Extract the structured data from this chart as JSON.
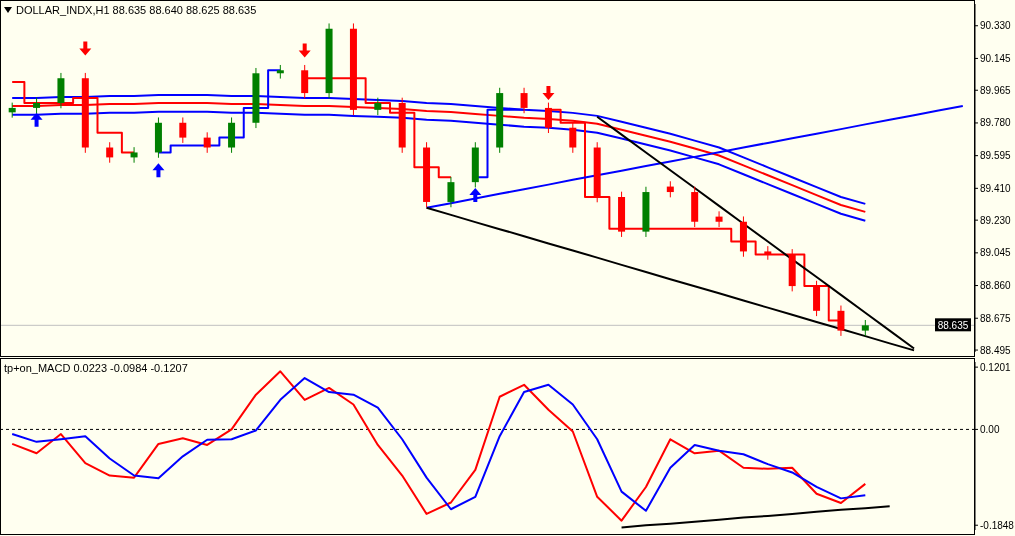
{
  "chart_data": [
    {
      "type": "candlestick",
      "title": "DOLLAR_INDX,H1 88.635 88.640 88.625 88.635",
      "categories": [
        null,
        null,
        null,
        null,
        null,
        null,
        null,
        null,
        null,
        null,
        null,
        null,
        null,
        null,
        null,
        null,
        null,
        null,
        null,
        null,
        null,
        null,
        null,
        null,
        null,
        null,
        null,
        null,
        null,
        null,
        null,
        null,
        null,
        null,
        null,
        null,
        null,
        null,
        null,
        null
      ],
      "ohlc": [
        [
          89.84,
          89.895,
          89.81,
          89.865
        ],
        [
          89.865,
          89.923,
          89.835,
          89.893
        ],
        [
          89.893,
          90.063,
          89.863,
          90.033
        ],
        [
          90.033,
          90.063,
          89.611,
          89.641
        ],
        [
          89.641,
          89.671,
          89.555,
          89.585
        ],
        [
          89.585,
          89.643,
          89.555,
          89.613
        ],
        [
          89.613,
          89.811,
          89.583,
          89.781
        ],
        [
          89.781,
          89.811,
          89.667,
          89.697
        ],
        [
          89.697,
          89.727,
          89.611,
          89.641
        ],
        [
          89.641,
          89.811,
          89.611,
          89.781
        ],
        [
          89.781,
          90.091,
          89.751,
          90.061
        ],
        [
          90.061,
          90.108,
          90.031,
          90.078
        ],
        [
          90.078,
          90.108,
          89.919,
          89.949
        ],
        [
          89.949,
          90.343,
          89.919,
          90.313
        ],
        [
          90.313,
          90.343,
          89.824,
          89.854
        ],
        [
          89.854,
          89.923,
          89.824,
          89.893
        ],
        [
          89.893,
          89.923,
          89.611,
          89.641
        ],
        [
          89.641,
          89.671,
          89.303,
          89.333
        ],
        [
          89.333,
          89.475,
          89.303,
          89.445
        ],
        [
          89.445,
          89.671,
          89.415,
          89.641
        ],
        [
          89.641,
          89.979,
          89.611,
          89.949
        ],
        [
          89.949,
          89.979,
          89.835,
          89.865
        ],
        [
          89.865,
          89.895,
          89.723,
          89.753
        ],
        [
          89.753,
          89.783,
          89.611,
          89.641
        ],
        [
          89.641,
          89.671,
          89.331,
          89.361
        ],
        [
          89.361,
          89.391,
          89.135,
          89.165
        ],
        [
          89.165,
          89.419,
          89.135,
          89.389
        ],
        [
          89.42,
          89.45,
          89.359,
          89.389
        ],
        [
          89.389,
          89.419,
          89.191,
          89.221
        ],
        [
          89.25,
          89.28,
          89.191,
          89.221
        ],
        [
          89.221,
          89.251,
          89.023,
          89.053
        ],
        [
          89.053,
          89.083,
          89.006,
          89.036
        ],
        [
          89.036,
          89.066,
          88.827,
          88.857
        ],
        [
          88.857,
          88.887,
          88.687,
          88.717
        ],
        [
          88.717,
          88.747,
          88.575,
          88.605
        ],
        [
          88.605,
          88.665,
          88.575,
          88.635
        ],
        null,
        null,
        null,
        null
      ],
      "colors": [
        "#008000",
        "#008000",
        "#008000",
        "#ff0000",
        "#ff0000",
        "#008000",
        "#008000",
        "#ff0000",
        "#ff0000",
        "#008000",
        "#008000",
        "#008000",
        "#ff0000",
        "#008000",
        "#ff0000",
        "#008000",
        "#ff0000",
        "#ff0000",
        "#008000",
        "#008000",
        "#008000",
        "#ff0000",
        "#ff0000",
        "#ff0000",
        "#ff0000",
        "#ff0000",
        "#008000",
        "#ff0000",
        "#ff0000",
        "#ff0000",
        "#ff0000",
        "#ff0000",
        "#ff0000",
        "#ff0000",
        "#ff0000",
        "#008000",
        null,
        null,
        null,
        null
      ],
      "series": [
        {
          "type": "line",
          "color": "#0000ff",
          "values": [
            89.921,
            89.921,
            89.927,
            89.927,
            89.932,
            89.932,
            89.938,
            89.938,
            89.938,
            89.932,
            89.932,
            89.927,
            89.921,
            89.921,
            89.915,
            89.91,
            89.904,
            89.893,
            89.887,
            89.876,
            89.865,
            89.854,
            89.848,
            89.837,
            89.82,
            89.787,
            89.753,
            89.719,
            89.68,
            89.641,
            89.585,
            89.529,
            89.473,
            89.417,
            89.361,
            89.322,
            null,
            null,
            null,
            null
          ]
        },
        {
          "type": "line",
          "color": "#ff0000",
          "values": [
            89.876,
            89.876,
            89.882,
            89.882,
            89.887,
            89.887,
            89.893,
            89.893,
            89.893,
            89.887,
            89.887,
            89.882,
            89.876,
            89.876,
            89.87,
            89.865,
            89.859,
            89.848,
            89.842,
            89.831,
            89.82,
            89.809,
            89.803,
            89.792,
            89.775,
            89.742,
            89.708,
            89.674,
            89.635,
            89.596,
            89.54,
            89.484,
            89.428,
            89.372,
            89.316,
            89.277,
            null,
            null,
            null,
            null
          ]
        },
        {
          "type": "line",
          "color": "#0000ff",
          "values": [
            89.826,
            89.826,
            89.832,
            89.832,
            89.837,
            89.837,
            89.843,
            89.843,
            89.843,
            89.837,
            89.837,
            89.832,
            89.826,
            89.826,
            89.82,
            89.815,
            89.809,
            89.798,
            89.792,
            89.781,
            89.77,
            89.759,
            89.753,
            89.742,
            89.725,
            89.692,
            89.658,
            89.624,
            89.585,
            89.546,
            89.49,
            89.434,
            89.378,
            89.322,
            89.266,
            89.227,
            null,
            null,
            null,
            null
          ]
        },
        {
          "type": "step",
          "color": "#ff0000",
          "values": [
            90.011,
            89.893,
            89.893,
            89.921,
            89.725,
            89.613,
            null,
            null,
            null,
            null,
            null,
            null,
            90.033,
            90.033,
            90.033,
            89.893,
            89.837,
            89.529,
            89.473,
            null,
            null,
            null,
            89.854,
            89.781,
            89.361,
            89.182,
            89.182,
            89.182,
            89.182,
            89.182,
            89.109,
            89.036,
            89.036,
            88.857,
            88.662,
            null,
            null,
            null,
            null,
            null
          ]
        },
        {
          "type": "step",
          "color": "#0000ff",
          "values": [
            null,
            null,
            null,
            null,
            null,
            null,
            89.613,
            89.652,
            89.652,
            89.697,
            89.865,
            90.078,
            null,
            null,
            null,
            null,
            null,
            null,
            null,
            89.473,
            89.854,
            89.854,
            null,
            null,
            null,
            null,
            null,
            null,
            null,
            null,
            null,
            null,
            null,
            null,
            null,
            null,
            null,
            null,
            null,
            null
          ]
        },
        {
          "type": "line",
          "color": "#0000ff",
          "values": [
            null,
            null,
            null,
            null,
            null,
            null,
            null,
            null,
            null,
            null,
            null,
            null,
            null,
            null,
            null,
            null,
            null,
            89.3,
            89.326,
            89.352,
            89.379,
            89.405,
            89.431,
            89.458,
            89.484,
            89.51,
            89.536,
            89.562,
            89.588,
            89.614,
            89.641,
            89.667,
            89.693,
            89.719,
            89.745,
            89.772,
            89.798,
            89.824,
            89.85,
            89.876
          ]
        },
        {
          "type": "line",
          "color": "#000000",
          "values": [
            null,
            null,
            null,
            null,
            null,
            null,
            null,
            null,
            null,
            null,
            null,
            null,
            null,
            null,
            null,
            null,
            null,
            89.3,
            89.26,
            89.219,
            89.179,
            89.139,
            89.098,
            89.058,
            89.018,
            88.977,
            88.937,
            88.896,
            88.856,
            88.816,
            88.775,
            88.735,
            88.695,
            88.654,
            88.614,
            88.574,
            88.533,
            88.493,
            null,
            null
          ]
        },
        {
          "type": "line",
          "color": "#000000",
          "values": [
            null,
            null,
            null,
            null,
            null,
            null,
            null,
            null,
            null,
            null,
            null,
            null,
            null,
            null,
            null,
            null,
            null,
            null,
            null,
            null,
            null,
            null,
            null,
            null,
            89.815,
            89.714,
            89.613,
            89.512,
            89.412,
            89.311,
            89.21,
            89.109,
            89.008,
            88.908,
            88.807,
            88.706,
            88.605,
            88.504,
            null,
            null
          ]
        },
        {
          "type": "scatter",
          "marker": "triangle",
          "color": "#ff0000",
          "values": [
            null,
            null,
            null,
            90.201,
            null,
            null,
            null,
            null,
            null,
            null,
            null,
            null,
            90.19,
            null,
            null,
            null,
            null,
            null,
            null,
            null,
            null,
            null,
            89.949,
            null,
            null,
            null,
            null,
            null,
            null,
            null,
            null,
            null,
            null,
            null,
            null,
            null,
            null,
            null,
            null,
            null
          ]
        },
        {
          "type": "scatter",
          "marker": "triangle",
          "color": "#0000ff",
          "values": [
            null,
            89.798,
            null,
            null,
            null,
            null,
            89.512,
            null,
            null,
            null,
            null,
            null,
            null,
            null,
            null,
            null,
            null,
            null,
            null,
            89.372,
            null,
            null,
            null,
            null,
            null,
            null,
            null,
            null,
            null,
            null,
            null,
            null,
            null,
            null,
            null,
            null,
            null,
            null,
            null,
            null
          ]
        }
      ],
      "ylim": [
        88.484,
        90.453
      ],
      "yticks": [
        {
          "value": 88.495,
          "label": "88.495"
        },
        {
          "value": 88.675,
          "label": "88.675"
        },
        {
          "value": 88.86,
          "label": "88.860"
        },
        {
          "value": 89.045,
          "label": "89.045"
        },
        {
          "value": 89.23,
          "label": "89.230"
        },
        {
          "value": 89.41,
          "label": "89.410"
        },
        {
          "value": 89.595,
          "label": "89.595"
        },
        {
          "value": 89.78,
          "label": "89.780"
        },
        {
          "value": 89.965,
          "label": "89.965"
        },
        {
          "value": 90.145,
          "label": "90.145"
        },
        {
          "value": 90.33,
          "label": "90.330"
        }
      ],
      "tick_labels": "y",
      "ref_lines": [
        {
          "axis": "y",
          "value": 88.635,
          "label": "88.635",
          "color": "#c0c0c0"
        }
      ]
    },
    {
      "type": "line",
      "title": "tp+on_MACD 0.0223 -0.0984 -0.1207",
      "categories": [
        null,
        null,
        null,
        null,
        null,
        null,
        null,
        null,
        null,
        null,
        null,
        null,
        null,
        null,
        null,
        null,
        null,
        null,
        null,
        null,
        null,
        null,
        null,
        null,
        null,
        null,
        null,
        null,
        null,
        null,
        null,
        null,
        null,
        null,
        null,
        null,
        null,
        null,
        null,
        null
      ],
      "series": [
        {
          "color": "#ff0000",
          "values": [
            -0.028,
            -0.046,
            -0.009,
            -0.065,
            -0.089,
            -0.093,
            -0.028,
            -0.017,
            -0.03,
            0,
            0.067,
            0.112,
            0.057,
            0.08,
            0.048,
            -0.03,
            -0.089,
            -0.163,
            -0.141,
            -0.078,
            0.063,
            0.086,
            0.038,
            -0.004,
            -0.13,
            -0.176,
            -0.111,
            -0.019,
            -0.046,
            -0.041,
            -0.074,
            -0.076,
            -0.074,
            -0.124,
            -0.142,
            -0.105,
            null,
            null,
            null,
            null
          ]
        },
        {
          "color": "#0000ff",
          "values": [
            -0.009,
            -0.024,
            -0.019,
            -0.013,
            -0.056,
            -0.089,
            -0.094,
            -0.052,
            -0.02,
            -0.019,
            -0.002,
            0.057,
            0.099,
            0.072,
            0.067,
            0.042,
            -0.019,
            -0.093,
            -0.154,
            -0.13,
            -0.013,
            0.072,
            0.086,
            0.048,
            -0.019,
            -0.12,
            -0.157,
            -0.074,
            -0.03,
            -0.041,
            -0.048,
            -0.067,
            -0.083,
            -0.111,
            -0.133,
            -0.127,
            null,
            null,
            null,
            null
          ]
        },
        {
          "color": "#000000",
          "values": [
            null,
            null,
            null,
            null,
            null,
            null,
            null,
            null,
            null,
            null,
            null,
            null,
            null,
            null,
            null,
            null,
            null,
            null,
            null,
            null,
            null,
            null,
            null,
            null,
            null,
            -0.189,
            -0.185,
            -0.182,
            -0.178,
            -0.174,
            -0.17,
            -0.167,
            -0.163,
            -0.159,
            -0.155,
            -0.152,
            -0.148,
            null,
            null,
            null
          ]
        }
      ],
      "ylim": [
        -0.194,
        0.13
      ],
      "yticks": [
        -0.1848,
        {
          "value": 0,
          "label": "0.00"
        },
        0.1201
      ],
      "tick_labels": "y",
      "ref_lines": [
        {
          "axis": "y",
          "value": 0,
          "color": "#000000",
          "line_style": "dashed"
        }
      ]
    }
  ]
}
